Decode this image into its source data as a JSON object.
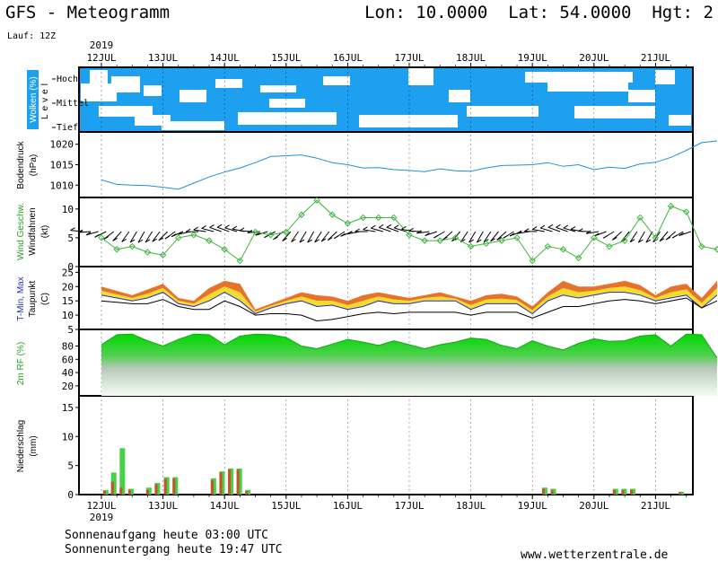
{
  "header": {
    "title": "GFS - Meteogramm",
    "coords": "Lon: 10.0000  Lat: 54.0000  Hgt: 2",
    "run": "Lauf: 12Z",
    "year": "2019"
  },
  "footer": {
    "sunrise": "Sonnenaufgang heute 03:00 UTC",
    "sunset": "Sonnenuntergang heute 19:47 UTC",
    "site": "www.wetterzentrale.de"
  },
  "chart_data": [
    {
      "type": "heatmap",
      "panel": "clouds",
      "ylabel": "Wolken (%)",
      "ylabel2": "Level",
      "levels": [
        "Hoch",
        "Mittel",
        "Tief"
      ],
      "x": [
        "12JUL",
        "13JUL",
        "14JUL",
        "15JUL",
        "16JUL",
        "17JUL",
        "18JUL",
        "19JUL",
        "20JUL",
        "21JUL"
      ],
      "colors": {
        "cloud": "#1ea0f0",
        "clear": "#ffffff"
      }
    },
    {
      "type": "line",
      "panel": "pressure",
      "ylabel": "Bodendruck",
      "unit": "(hPa)",
      "ylim": [
        1007,
        1023
      ],
      "yticks": [
        1010,
        1015,
        1020
      ],
      "x_days": [
        0,
        0.25,
        0.5,
        0.75,
        1.0,
        1.25,
        1.5,
        1.75,
        2.0,
        2.25,
        2.5,
        2.75,
        3.0,
        3.25,
        3.5,
        3.75,
        4.0,
        4.25,
        4.5,
        4.75,
        5.0,
        5.25,
        5.5,
        5.75,
        6.0,
        6.25,
        6.5,
        6.75,
        7.0,
        7.25,
        7.5,
        7.75,
        8.0,
        8.25,
        8.5,
        8.75,
        9.0,
        9.25,
        9.5,
        9.75,
        10.0
      ],
      "values": [
        1011.3,
        1010.2,
        1010.0,
        1009.9,
        1009.5,
        1009.0,
        1010.5,
        1012.0,
        1013.2,
        1014.2,
        1015.5,
        1017.0,
        1017.2,
        1017.4,
        1016.6,
        1015.5,
        1015.0,
        1014.2,
        1014.3,
        1013.8,
        1013.6,
        1013.3,
        1014.0,
        1013.5,
        1013.4,
        1014.2,
        1014.8,
        1014.9,
        1015.0,
        1015.5,
        1014.6,
        1015.0,
        1013.8,
        1014.4,
        1014.1,
        1015.2,
        1015.6,
        1016.8,
        1018.5,
        1020.4,
        1020.8
      ],
      "color": "#1e90d8"
    },
    {
      "type": "line",
      "panel": "wind",
      "ylabel": "Wind Geschw.",
      "ylabel2": "Windfahnen",
      "unit": "(kt)",
      "ylim": [
        0,
        12
      ],
      "yticks": [
        0,
        5,
        10
      ],
      "x_days": [
        0,
        0.25,
        0.5,
        0.75,
        1.0,
        1.25,
        1.5,
        1.75,
        2.0,
        2.25,
        2.5,
        2.75,
        3.0,
        3.25,
        3.5,
        3.75,
        4.0,
        4.25,
        4.5,
        4.75,
        5.0,
        5.25,
        5.5,
        5.75,
        6.0,
        6.25,
        6.5,
        6.75,
        7.0,
        7.25,
        7.5,
        7.75,
        8.0,
        8.25,
        8.5,
        8.75,
        9.0,
        9.25,
        9.5,
        9.75,
        10.0
      ],
      "values": [
        5.0,
        3.0,
        3.5,
        2.5,
        2.0,
        5.0,
        5.5,
        4.5,
        3.0,
        1.0,
        6.0,
        5.5,
        6.0,
        9.0,
        11.5,
        9.0,
        7.5,
        8.5,
        8.5,
        8.5,
        5.5,
        4.5,
        4.5,
        5.0,
        3.5,
        4.0,
        4.5,
        5.0,
        1.0,
        3.5,
        3.0,
        1.5,
        5.0,
        3.5,
        4.5,
        8.5,
        5.0,
        10.5,
        9.5,
        3.5,
        3.0
      ],
      "color": "#3cb43c"
    },
    {
      "type": "area",
      "panel": "temperature",
      "ylabel": "T-Min, Max",
      "ylabel2": "Taupunkt",
      "unit": "(C)",
      "ylim": [
        5,
        27
      ],
      "yticks": [
        5,
        10,
        15,
        20,
        25
      ],
      "x_days": [
        0,
        0.25,
        0.5,
        0.75,
        1.0,
        1.25,
        1.5,
        1.75,
        2.0,
        2.25,
        2.5,
        2.75,
        3.0,
        3.25,
        3.5,
        3.75,
        4.0,
        4.25,
        4.5,
        4.75,
        5.0,
        5.25,
        5.5,
        5.75,
        6.0,
        6.25,
        6.5,
        6.75,
        7.0,
        7.25,
        7.5,
        7.75,
        8.0,
        8.25,
        8.5,
        8.75,
        9.0,
        9.25,
        9.5,
        9.75,
        10.0
      ],
      "series": [
        {
          "name": "T-Max",
          "values": [
            20,
            18.5,
            17,
            19,
            21,
            16,
            15,
            19.5,
            22,
            21,
            12,
            14,
            16,
            18,
            17,
            16.5,
            15,
            17,
            18,
            17,
            16,
            17,
            18,
            16.5,
            15,
            17,
            17.5,
            16.5,
            13,
            18,
            22,
            20,
            20,
            21,
            22,
            20.5,
            17,
            20,
            21,
            16,
            22
          ]
        },
        {
          "name": "T-Min",
          "values": [
            17,
            16,
            15,
            16,
            18,
            14,
            13,
            15,
            18,
            15,
            10.5,
            12.5,
            14,
            15,
            13,
            13.5,
            12,
            13,
            15,
            14,
            14,
            15,
            15,
            15,
            12,
            14,
            14,
            14,
            10.5,
            15,
            17,
            16,
            17,
            18,
            18,
            17,
            15,
            16,
            17,
            12.5,
            17
          ]
        },
        {
          "name": "Taupunkt",
          "values": [
            15,
            14.5,
            14,
            14,
            15.5,
            13,
            12,
            12,
            15,
            13,
            10,
            10.5,
            10.5,
            10,
            8,
            8.5,
            9.5,
            10.5,
            11,
            10.5,
            11,
            11,
            11,
            11,
            10,
            11,
            11,
            11,
            9,
            11,
            13,
            13,
            14,
            15,
            15.5,
            15,
            14,
            15,
            16,
            12.5,
            15
          ]
        }
      ],
      "colors": {
        "max": "#e8722a",
        "min": "#f4dc2c",
        "dew": "#000000"
      }
    },
    {
      "type": "area",
      "panel": "humidity",
      "ylabel": "2m RF (%)",
      "ylim": [
        5,
        105
      ],
      "yticks": [
        20,
        40,
        60,
        80
      ],
      "x_days": [
        0,
        0.25,
        0.5,
        0.75,
        1.0,
        1.25,
        1.5,
        1.75,
        2.0,
        2.25,
        2.5,
        2.75,
        3.0,
        3.25,
        3.5,
        3.75,
        4.0,
        4.25,
        4.5,
        4.75,
        5.0,
        5.25,
        5.5,
        5.75,
        6.0,
        6.25,
        6.5,
        6.75,
        7.0,
        7.25,
        7.5,
        7.75,
        8.0,
        8.25,
        8.5,
        8.75,
        9.0,
        9.25,
        9.5,
        9.75,
        10.0
      ],
      "values": [
        82,
        97,
        98,
        88,
        80,
        90,
        98,
        97,
        82,
        95,
        98,
        97,
        93,
        80,
        76,
        83,
        90,
        86,
        81,
        88,
        82,
        76,
        82,
        86,
        92,
        90,
        81,
        76,
        88,
        80,
        74,
        84,
        91,
        87,
        88,
        95,
        97,
        80,
        98,
        97,
        62
      ],
      "color": "#32c832"
    },
    {
      "type": "bar",
      "panel": "precipitation",
      "ylabel": "Niederschlag",
      "unit": "(mm)",
      "ylim": [
        0,
        17
      ],
      "yticks": [
        0,
        5,
        10,
        15
      ],
      "x_days": [
        0.07,
        0.2,
        0.34,
        0.48,
        0.77,
        0.91,
        1.06,
        1.2,
        1.82,
        1.96,
        2.1,
        2.24,
        2.38,
        7.2,
        7.34,
        8.35,
        8.49,
        8.63,
        9.42
      ],
      "green": [
        0.8,
        3.8,
        8.0,
        1.0,
        1.2,
        2.0,
        3.0,
        3.0,
        2.8,
        4.0,
        4.5,
        4.5,
        0.8,
        1.2,
        1.0,
        1.0,
        1.0,
        1.0,
        0.5
      ],
      "red": [
        0.6,
        2.2,
        1.2,
        0.8,
        0.8,
        1.8,
        2.7,
        2.8,
        2.5,
        3.8,
        4.3,
        4.3,
        0.6,
        1.0,
        0.8,
        0.8,
        0.8,
        0.8,
        0.4
      ],
      "colors": {
        "total": "#46d246",
        "rain": "#c8502a"
      }
    }
  ]
}
